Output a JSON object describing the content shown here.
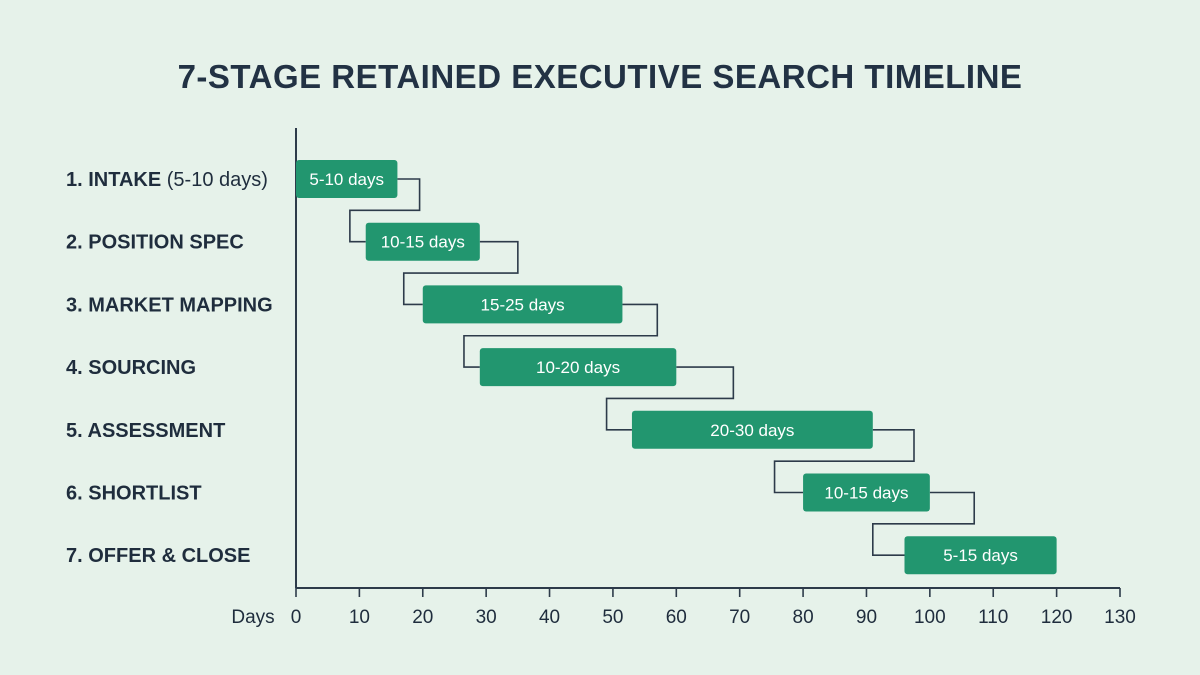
{
  "title": "7-STAGE RETAINED EXECUTIVE SEARCH TIMELINE",
  "colors": {
    "bar": "#22966f",
    "axis": "#2d3b4a",
    "connector": "#2d3b4a",
    "background": "#e6f2ea"
  },
  "chart_data": {
    "type": "gantt",
    "title": "7-STAGE RETAINED EXECUTIVE SEARCH TIMELINE",
    "xlabel": "Days",
    "xlim": [
      0,
      130
    ],
    "xticks": [
      0,
      10,
      20,
      30,
      40,
      50,
      60,
      70,
      80,
      90,
      100,
      110,
      120,
      130
    ],
    "grid": false,
    "legend": "none",
    "stages": [
      {
        "name": "1. INTAKE",
        "note": "(5-10 days)",
        "start": 0,
        "end": 16,
        "label": "5-10 days"
      },
      {
        "name": "2. POSITION SPEC",
        "note": "",
        "start": 11,
        "end": 29,
        "label": "10-15 days"
      },
      {
        "name": "3. MARKET MAPPING",
        "note": "",
        "start": 20,
        "end": 51.5,
        "label": "15-25 days"
      },
      {
        "name": "4. SOURCING",
        "note": "",
        "start": 29,
        "end": 60,
        "label": "10-20 days"
      },
      {
        "name": "5. ASSESSMENT",
        "note": "",
        "start": 53,
        "end": 91,
        "label": "20-30 days"
      },
      {
        "name": "6. SHORTLIST",
        "note": "",
        "start": 80,
        "end": 100,
        "label": "10-15 days"
      },
      {
        "name": "7. OFFER & CLOSE",
        "note": "",
        "start": 96,
        "end": 120,
        "label": "5-15 days"
      }
    ],
    "connectors": [
      {
        "from_stage": 0,
        "to_stage": 1,
        "turn_out": 19.5,
        "turn_in": 8.5
      },
      {
        "from_stage": 1,
        "to_stage": 2,
        "turn_out": 35,
        "turn_in": 17
      },
      {
        "from_stage": 2,
        "to_stage": 3,
        "turn_out": 57,
        "turn_in": 26.5
      },
      {
        "from_stage": 3,
        "to_stage": 4,
        "turn_out": 69,
        "turn_in": 49
      },
      {
        "from_stage": 4,
        "to_stage": 5,
        "turn_out": 97.5,
        "turn_in": 75.5
      },
      {
        "from_stage": 5,
        "to_stage": 6,
        "turn_out": 107,
        "turn_in": 91
      }
    ]
  }
}
